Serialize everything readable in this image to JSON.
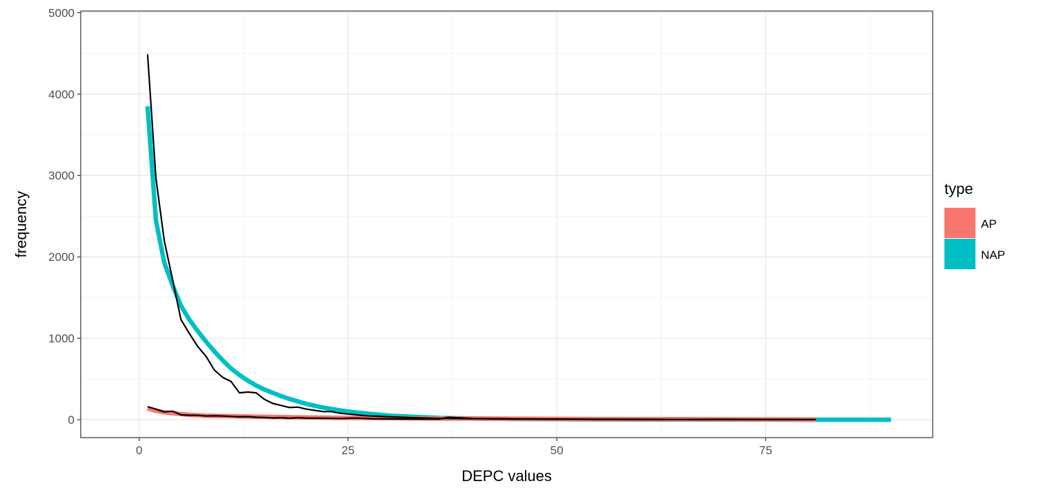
{
  "chart_data": {
    "type": "line",
    "title": "",
    "xlabel": "DEPC values",
    "ylabel": "frequency",
    "xlim": [
      -7,
      95
    ],
    "ylim": [
      -220,
      5020
    ],
    "x_ticks": [
      0,
      25,
      50,
      75
    ],
    "x_tick_labels": [
      "0",
      "25",
      "50",
      "75"
    ],
    "y_ticks": [
      0,
      1000,
      2000,
      3000,
      4000,
      5000
    ],
    "y_tick_labels": [
      "0",
      "1000",
      "2000",
      "3000",
      "4000",
      "5000"
    ],
    "grid": true,
    "legend": {
      "title": "type",
      "position": "right",
      "entries": [
        {
          "label": "AP",
          "color": "#F8766D"
        },
        {
          "label": "NAP",
          "color": "#00BFC4"
        }
      ]
    },
    "series": [
      {
        "name": "NAP",
        "color": "#00BFC4",
        "style": "thick",
        "x": [
          1,
          2,
          3,
          4,
          5,
          6,
          7,
          8,
          9,
          10,
          11,
          12,
          13,
          14,
          15,
          16,
          17,
          18,
          19,
          20,
          22,
          24,
          26,
          28,
          30,
          33,
          36,
          40,
          45,
          50,
          55,
          60,
          65,
          70,
          75,
          80,
          85,
          90
        ],
        "y": [
          3850,
          2450,
          1930,
          1650,
          1400,
          1230,
          1090,
          960,
          840,
          730,
          630,
          550,
          480,
          420,
          370,
          330,
          290,
          255,
          225,
          195,
          150,
          115,
          88,
          68,
          50,
          35,
          22,
          14,
          9,
          6,
          4,
          3,
          2,
          1,
          1,
          0,
          0,
          0
        ]
      },
      {
        "name": "AP",
        "color": "#F8766D",
        "style": "thick",
        "x": [
          1,
          2,
          3,
          4,
          5,
          6,
          8,
          10,
          12,
          15,
          18,
          20,
          25,
          30,
          35,
          40,
          45,
          50,
          55,
          60,
          65,
          70,
          75,
          80,
          81
        ],
        "y": [
          140,
          110,
          90,
          80,
          70,
          60,
          50,
          45,
          40,
          35,
          30,
          28,
          22,
          18,
          15,
          14,
          12,
          10,
          8,
          7,
          6,
          5,
          4,
          3,
          3
        ]
      },
      {
        "name": "",
        "color": "#000000",
        "style": "thin",
        "x": [
          1,
          2,
          3,
          4,
          5,
          6,
          7,
          8,
          9,
          10,
          11,
          12,
          13,
          14,
          15,
          16,
          17,
          18,
          19,
          20,
          21,
          22,
          23,
          24,
          25,
          27,
          30,
          33,
          35,
          37,
          40,
          45,
          50,
          55,
          60,
          65,
          70,
          75,
          80,
          81
        ],
        "y": [
          4490,
          2970,
          2200,
          1720,
          1230,
          1060,
          900,
          780,
          610,
          520,
          470,
          330,
          340,
          330,
          250,
          200,
          175,
          150,
          155,
          130,
          115,
          100,
          100,
          80,
          70,
          50,
          35,
          25,
          18,
          15,
          12,
          8,
          6,
          5,
          4,
          3,
          2,
          2,
          1,
          1
        ]
      },
      {
        "name": "",
        "color": "#000000",
        "style": "thin",
        "x": [
          1,
          2,
          3,
          4,
          5,
          6,
          7,
          8,
          9,
          10,
          11,
          12,
          13,
          14,
          15,
          16,
          17,
          18,
          19,
          20,
          22,
          24,
          26,
          28,
          30,
          33,
          36,
          37,
          38,
          40,
          45,
          50,
          55,
          60,
          65,
          70,
          75,
          80,
          81
        ],
        "y": [
          160,
          130,
          95,
          105,
          60,
          55,
          55,
          45,
          48,
          45,
          40,
          35,
          38,
          30,
          28,
          22,
          25,
          18,
          25,
          20,
          18,
          15,
          20,
          12,
          10,
          8,
          8,
          30,
          25,
          15,
          10,
          8,
          5,
          5,
          3,
          5,
          3,
          2,
          2
        ]
      },
      {
        "name": "",
        "color": "#00BFC4",
        "style": "medium",
        "x": [
          81,
          90
        ],
        "y": [
          0,
          0
        ]
      }
    ]
  }
}
